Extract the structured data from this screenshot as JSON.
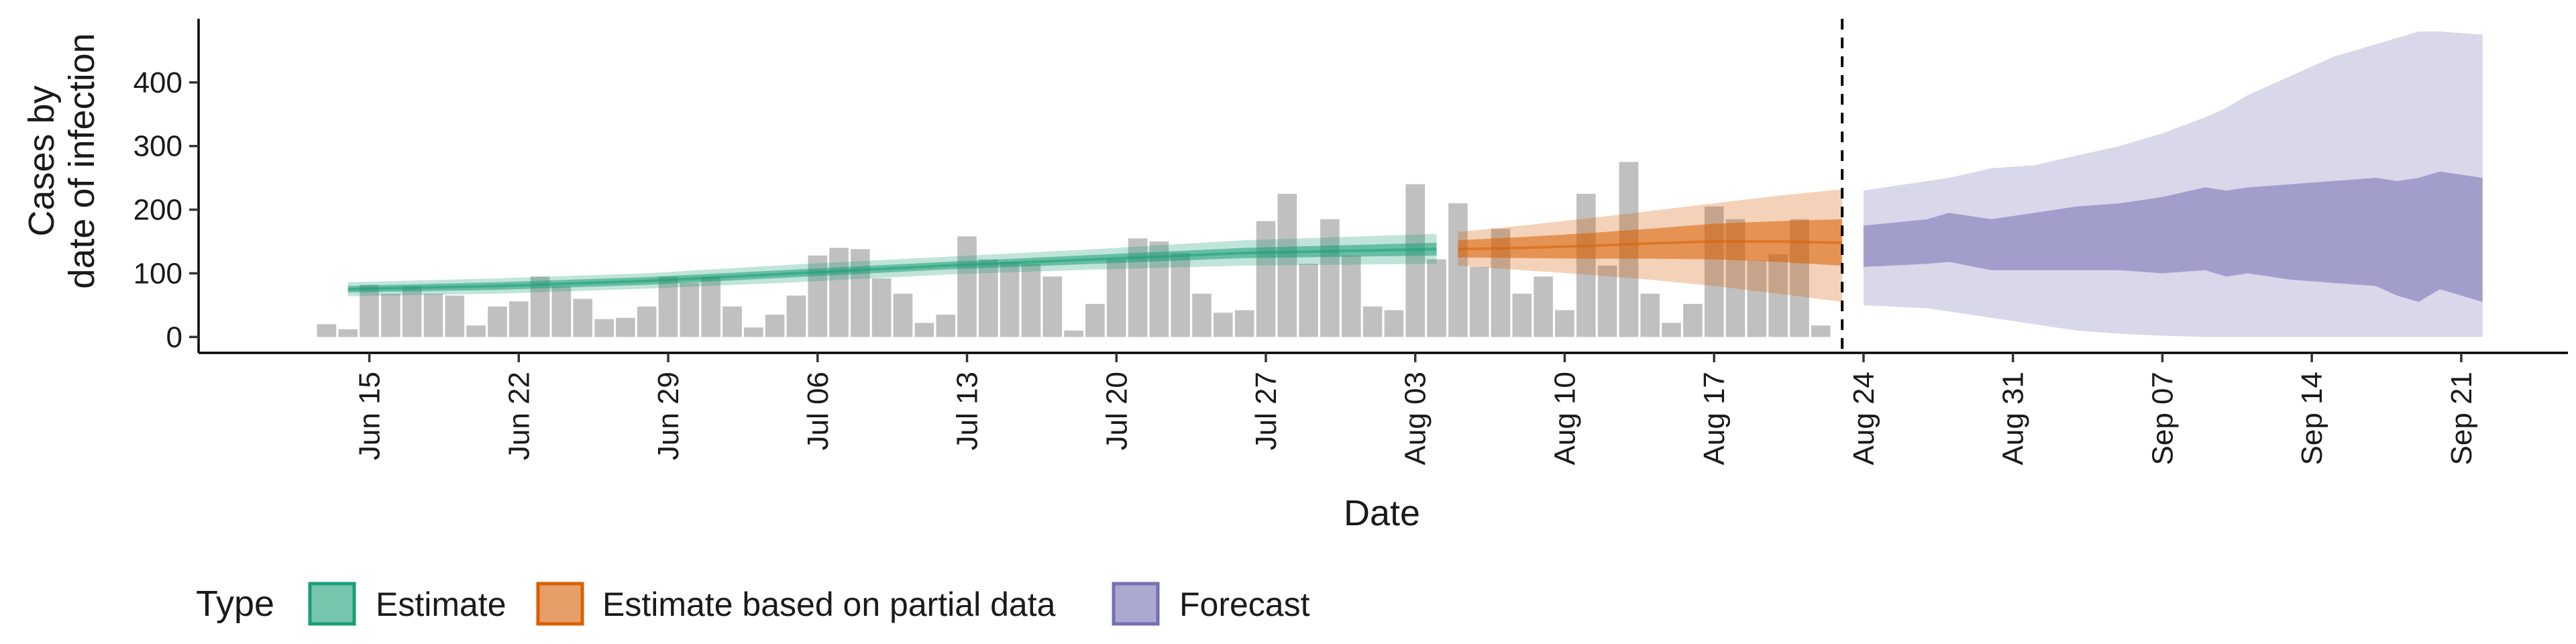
{
  "chart_data": {
    "type": "bar",
    "title": "",
    "xlabel": "Date",
    "ylabel_lines": [
      "Cases by",
      "date of infection"
    ],
    "x_range": [
      "2020-06-07",
      "2020-09-26"
    ],
    "ylim": [
      -25,
      500
    ],
    "y_ticks": [
      0,
      100,
      200,
      300,
      400
    ],
    "x_ticks": [
      {
        "date": "2020-06-15",
        "label": "Jun 15"
      },
      {
        "date": "2020-06-22",
        "label": "Jun 22"
      },
      {
        "date": "2020-06-29",
        "label": "Jun 29"
      },
      {
        "date": "2020-07-06",
        "label": "Jul 06"
      },
      {
        "date": "2020-07-13",
        "label": "Jul 13"
      },
      {
        "date": "2020-07-20",
        "label": "Jul 20"
      },
      {
        "date": "2020-07-27",
        "label": "Jul 27"
      },
      {
        "date": "2020-08-03",
        "label": "Aug 03"
      },
      {
        "date": "2020-08-10",
        "label": "Aug 10"
      },
      {
        "date": "2020-08-17",
        "label": "Aug 17"
      },
      {
        "date": "2020-08-24",
        "label": "Aug 24"
      },
      {
        "date": "2020-08-31",
        "label": "Aug 31"
      },
      {
        "date": "2020-09-07",
        "label": "Sep 07"
      },
      {
        "date": "2020-09-14",
        "label": "Sep 14"
      },
      {
        "date": "2020-09-21",
        "label": "Sep 21"
      }
    ],
    "grid": false,
    "legend_position": "bottom-left",
    "legend": {
      "title": "Type",
      "items": [
        {
          "name": "Estimate",
          "color": "#1b9e77"
        },
        {
          "name": "Estimate based on partial data",
          "color": "#d95f02"
        },
        {
          "name": "Forecast",
          "color": "#7570b3"
        }
      ]
    },
    "vline_date": "2020-08-23",
    "bars": {
      "color": "#bdbdbd",
      "start_date": "2020-06-13",
      "values": [
        20,
        12,
        82,
        68,
        80,
        68,
        65,
        18,
        48,
        56,
        95,
        80,
        60,
        28,
        30,
        48,
        95,
        85,
        95,
        48,
        15,
        35,
        65,
        128,
        140,
        138,
        92,
        68,
        22,
        35,
        158,
        122,
        118,
        115,
        95,
        10,
        52,
        122,
        155,
        150,
        132,
        68,
        38,
        42,
        182,
        225,
        115,
        185,
        128,
        48,
        42,
        240,
        122,
        210,
        110,
        170,
        68,
        95,
        42,
        225,
        112,
        275,
        68,
        22,
        52,
        205,
        185,
        120,
        130,
        185,
        18
      ]
    },
    "series": [
      {
        "name": "Estimate",
        "color": "#1b9e77",
        "x": [
          "2020-06-14",
          "2020-06-21",
          "2020-06-28",
          "2020-07-05",
          "2020-07-12",
          "2020-07-19",
          "2020-07-26",
          "2020-08-04"
        ],
        "median": [
          75,
          80,
          88,
          100,
          112,
          122,
          132,
          138
        ],
        "lower_50": [
          70,
          74,
          82,
          94,
          106,
          115,
          124,
          128
        ],
        "upper_50": [
          80,
          86,
          94,
          106,
          118,
          129,
          140,
          148
        ],
        "lower_90": [
          64,
          68,
          76,
          86,
          98,
          106,
          112,
          115
        ],
        "upper_90": [
          86,
          92,
          100,
          114,
          126,
          138,
          152,
          162
        ]
      },
      {
        "name": "Estimate based on partial data",
        "color": "#d95f02",
        "x": [
          "2020-08-05",
          "2020-08-08",
          "2020-08-11",
          "2020-08-14",
          "2020-08-17",
          "2020-08-20",
          "2020-08-23"
        ],
        "median": [
          138,
          140,
          143,
          147,
          150,
          150,
          148
        ],
        "lower_50": [
          125,
          124,
          123,
          123,
          122,
          118,
          112
        ],
        "upper_50": [
          152,
          157,
          163,
          170,
          178,
          182,
          185
        ],
        "lower_90": [
          112,
          105,
          98,
          90,
          80,
          68,
          55
        ],
        "upper_90": [
          165,
          175,
          186,
          198,
          210,
          222,
          232
        ]
      },
      {
        "name": "Forecast",
        "color": "#7570b3",
        "x": [
          "2020-08-24",
          "2020-08-27",
          "2020-08-28",
          "2020-08-30",
          "2020-09-01",
          "2020-09-03",
          "2020-09-05",
          "2020-09-07",
          "2020-09-09",
          "2020-09-10",
          "2020-09-11",
          "2020-09-13",
          "2020-09-15",
          "2020-09-17",
          "2020-09-18",
          "2020-09-19",
          "2020-09-20",
          "2020-09-22"
        ],
        "lower_50": [
          110,
          115,
          118,
          105,
          105,
          105,
          105,
          100,
          105,
          95,
          100,
          90,
          85,
          80,
          65,
          55,
          75,
          55
        ],
        "upper_50": [
          175,
          185,
          195,
          185,
          195,
          205,
          210,
          220,
          235,
          230,
          235,
          240,
          245,
          250,
          245,
          250,
          260,
          250
        ],
        "lower_90": [
          50,
          45,
          40,
          30,
          20,
          10,
          5,
          2,
          0,
          0,
          0,
          0,
          0,
          0,
          0,
          0,
          0,
          0
        ],
        "upper_90": [
          230,
          245,
          250,
          265,
          270,
          285,
          300,
          320,
          345,
          360,
          380,
          410,
          440,
          460,
          470,
          480,
          480,
          475
        ]
      }
    ]
  }
}
